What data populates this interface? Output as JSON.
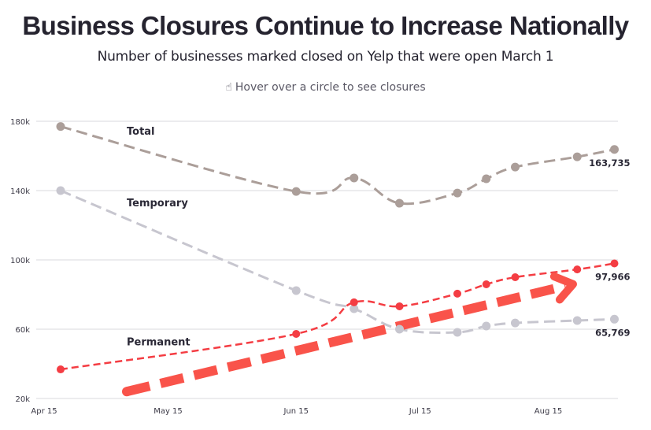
{
  "header": {
    "title": "Business Closures Continue to Increase Nationally",
    "subtitle": "Number of businesses marked closed on Yelp that were open March 1",
    "hint_icon": "pointing-hand-icon",
    "hint": "Hover over a circle to see closures"
  },
  "chart_data": {
    "type": "line",
    "title": "Business Closures Continue to Increase Nationally",
    "subtitle": "Number of businesses marked closed on Yelp that were open March 1",
    "xlabel": "",
    "ylabel": "",
    "x_unit": "date (2020)",
    "x_ticks": [
      {
        "label": "Apr 15",
        "day": 0
      },
      {
        "label": "May 15",
        "day": 30
      },
      {
        "label": "Jun 15",
        "day": 61
      },
      {
        "label": "Jul 15",
        "day": 91
      },
      {
        "label": "Aug 15",
        "day": 122
      }
    ],
    "x_range_days": [
      -2,
      139
    ],
    "x": [
      "Apr 19",
      "Jun 15",
      "Jun 29",
      "Jul 10",
      "Jul 24",
      "Jul 31",
      "Aug 7",
      "Aug 22",
      "Aug 31"
    ],
    "x_days": [
      4,
      61,
      75,
      86,
      100,
      107,
      114,
      129,
      138
    ],
    "y_ticks": [
      {
        "label": "20k",
        "value": 20000
      },
      {
        "label": "60k",
        "value": 60000
      },
      {
        "label": "100k",
        "value": 100000
      },
      {
        "label": "140k",
        "value": 140000
      },
      {
        "label": "180k",
        "value": 180000
      }
    ],
    "ylim": [
      20000,
      180000
    ],
    "grid": true,
    "series": [
      {
        "name": "Total",
        "label": "Total",
        "color": "#ab9e99",
        "values": [
          177000,
          139500,
          147300,
          132700,
          138600,
          146800,
          153600,
          159500,
          163735
        ],
        "end_label": "163,735",
        "dash": "long"
      },
      {
        "name": "Temporary",
        "label": "Temporary",
        "color": "#c7c6cf",
        "values": [
          140000,
          82300,
          71800,
          60000,
          58200,
          61800,
          63600,
          65000,
          65769
        ],
        "end_label": "65,769",
        "dash": "long"
      },
      {
        "name": "Permanent",
        "label": "Permanent",
        "color": "#f43d43",
        "values": [
          36800,
          57300,
          75500,
          73200,
          80500,
          85900,
          90000,
          94500,
          97966
        ],
        "end_label": "97,966",
        "dash": "short"
      }
    ],
    "annotation": {
      "type": "trend-arrow",
      "color": "#f9534a",
      "from": {
        "day": 20,
        "value": 24000
      },
      "to": {
        "day": 128,
        "value": 86000
      },
      "meaning": "upward trend in permanent closures"
    }
  }
}
